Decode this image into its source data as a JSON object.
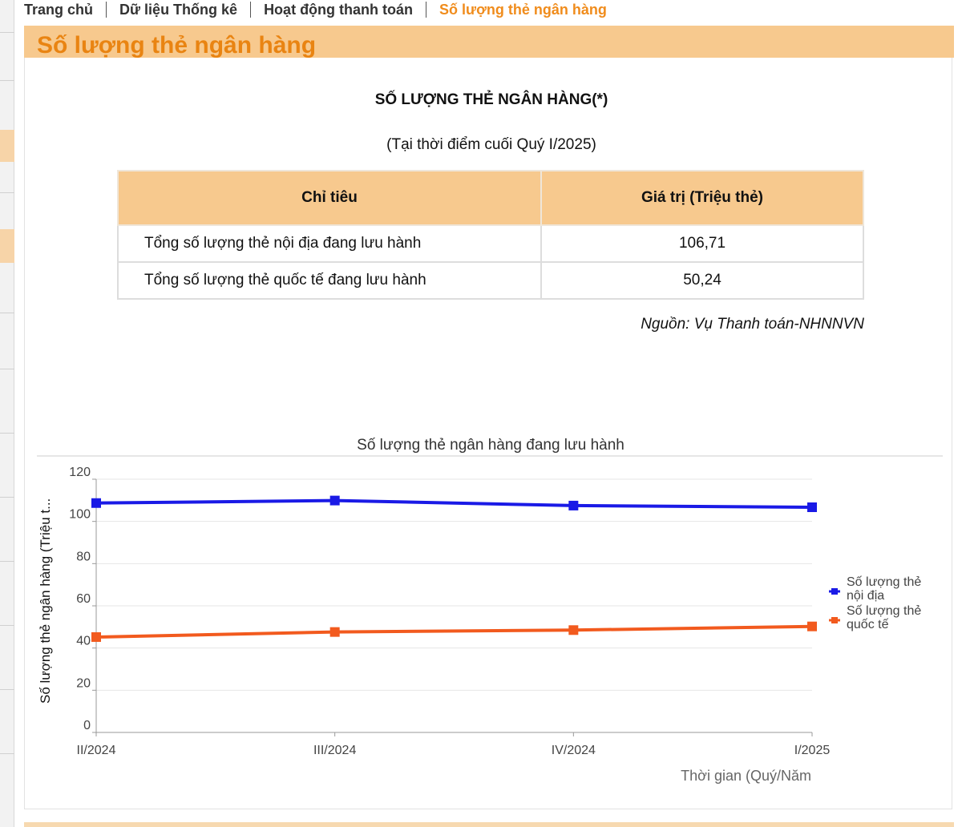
{
  "breadcrumb": [
    {
      "label": "Trang chủ"
    },
    {
      "label": "Dữ liệu Thống kê"
    },
    {
      "label": "Hoạt động thanh toán"
    },
    {
      "label": "Số lượng thẻ ngân hàng"
    }
  ],
  "header": {
    "title": "Số lượng thẻ ngân hàng"
  },
  "table": {
    "title": "SỐ LƯỢNG THẺ NGÂN HÀNG(*)",
    "subtitle": "(Tại thời điểm cuối Quý I/2025)",
    "columns": [
      "Chỉ tiêu",
      "Giá trị (Triệu thẻ)"
    ],
    "rows": [
      {
        "label": "Tổng số lượng thẻ nội địa đang lưu hành",
        "value": "106,71"
      },
      {
        "label": "Tổng số lượng thẻ quốc tế đang lưu hành",
        "value": "50,24"
      }
    ],
    "source": "Nguồn: Vụ Thanh toán-NHNNVN"
  },
  "colors": {
    "accent": "#f08c1c",
    "header_bg": "#f7c98e",
    "domestic": "#1a1ae6",
    "international": "#f25a1e"
  },
  "chart_data": {
    "type": "line",
    "title": "Số lượng thẻ ngân hàng đang lưu hành",
    "xlabel": "Thời gian (Quý/Năm",
    "ylabel": "Số lượng thẻ ngân hàng (Triệu t...",
    "categories": [
      "II/2024",
      "III/2024",
      "IV/2024",
      "I/2025"
    ],
    "ylim": [
      0,
      120
    ],
    "yticks": [
      0,
      20,
      40,
      60,
      80,
      100,
      120
    ],
    "grid": true,
    "legend_position": "right",
    "series": [
      {
        "name": "Số lượng thẻ nội địa",
        "legend_lines": [
          "Số lượng thẻ",
          "nội địa"
        ],
        "color": "#1a1ae6",
        "values": [
          108.7,
          109.9,
          107.5,
          106.71
        ]
      },
      {
        "name": "Số lượng thẻ quốc tế",
        "legend_lines": [
          "Số lượng thẻ",
          "quốc tế"
        ],
        "color": "#f25a1e",
        "values": [
          45.2,
          47.6,
          48.5,
          50.24
        ]
      }
    ]
  }
}
